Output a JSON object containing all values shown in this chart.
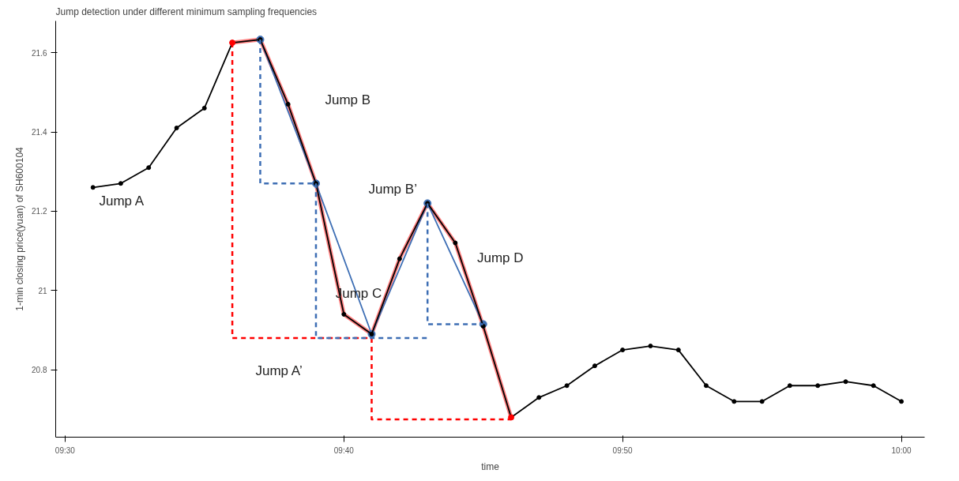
{
  "chart_data": {
    "type": "line",
    "title": "Jump detection under different minimum sampling frequencies",
    "xlabel": "time",
    "ylabel": "1-min closing price(yuan) of SH600104",
    "xlim": [
      9.4944,
      10.0139
    ],
    "ylim": [
      20.63,
      21.68
    ],
    "xticks": [
      {
        "value": 9.5,
        "label": "09:30"
      },
      {
        "value": 9.6667,
        "label": "09:40"
      },
      {
        "value": 9.8333,
        "label": "09:50"
      },
      {
        "value": 10.0,
        "label": "10:00"
      }
    ],
    "yticks": [
      20.8,
      21.0,
      21.2,
      21.4,
      21.6
    ],
    "grid": false,
    "series": [
      {
        "color": "#ff8080",
        "marker": "none",
        "line_style": "solid",
        "x": [
          9.6,
          9.6167,
          9.6333,
          9.65,
          9.6667,
          9.6833,
          9.7,
          9.7167,
          9.7333,
          9.75,
          9.7667
        ],
        "values": [
          21.625,
          21.633,
          21.47,
          21.27,
          20.94,
          20.89,
          21.08,
          21.22,
          21.12,
          20.91,
          20.68
        ]
      },
      {
        "type": "line",
        "color": "#3d6eb4",
        "marker": "circle",
        "line_style": "solid",
        "x": [
          9.6167,
          9.65,
          9.6833,
          9.7167,
          9.75
        ],
        "values": [
          21.633,
          21.27,
          20.89,
          21.22,
          20.915
        ]
      },
      {
        "color": "#000000",
        "marker": "circle",
        "line_style": "solid",
        "x": [
          9.5167,
          9.5333,
          9.55,
          9.5667,
          9.5833,
          9.6,
          9.6167,
          9.6333,
          9.65,
          9.6667,
          9.6833,
          9.7,
          9.7167,
          9.7333,
          9.75,
          9.7667,
          9.7833,
          9.8,
          9.8167,
          9.8333,
          9.85,
          9.8667,
          9.8833,
          9.9,
          9.9167,
          9.9333,
          9.95,
          9.9667,
          9.9833,
          10.0
        ],
        "values": [
          21.26,
          21.27,
          21.31,
          21.41,
          21.46,
          21.625,
          21.633,
          21.47,
          21.27,
          20.94,
          20.89,
          21.08,
          21.22,
          21.12,
          20.91,
          20.68,
          20.73,
          20.76,
          20.81,
          20.85,
          20.86,
          20.85,
          20.76,
          20.72,
          20.72,
          20.76,
          20.76,
          20.77,
          20.76,
          20.72
        ]
      },
      {
        "type": "scatter",
        "color": "#ff0000",
        "marker": "circle",
        "x": [
          9.6,
          9.7667
        ],
        "values": [
          21.625,
          20.68
        ]
      },
      {
        "type": "line",
        "color": "#ff0000",
        "marker": "none",
        "line_style": "dashed",
        "x": [
          9.6,
          9.6,
          9.6833,
          null,
          9.6833,
          9.6833,
          9.7667
        ],
        "values": [
          21.625,
          20.88,
          20.88,
          null,
          20.88,
          20.675,
          20.675
        ]
      },
      {
        "type": "line",
        "color": "#3d6eb4",
        "marker": "none",
        "line_style": "dashed",
        "x": [
          9.6167,
          9.6167,
          9.65,
          null,
          9.65,
          9.65,
          9.7167,
          null,
          9.7167,
          9.7167,
          9.75
        ],
        "values": [
          21.633,
          21.27,
          21.27,
          null,
          21.27,
          20.88,
          20.88,
          null,
          21.22,
          20.915,
          20.915
        ]
      }
    ],
    "annotations": [
      "Jump A",
      "Jump B",
      "Jump B’",
      "Jump C",
      "Jump D",
      "Jump A’"
    ]
  }
}
